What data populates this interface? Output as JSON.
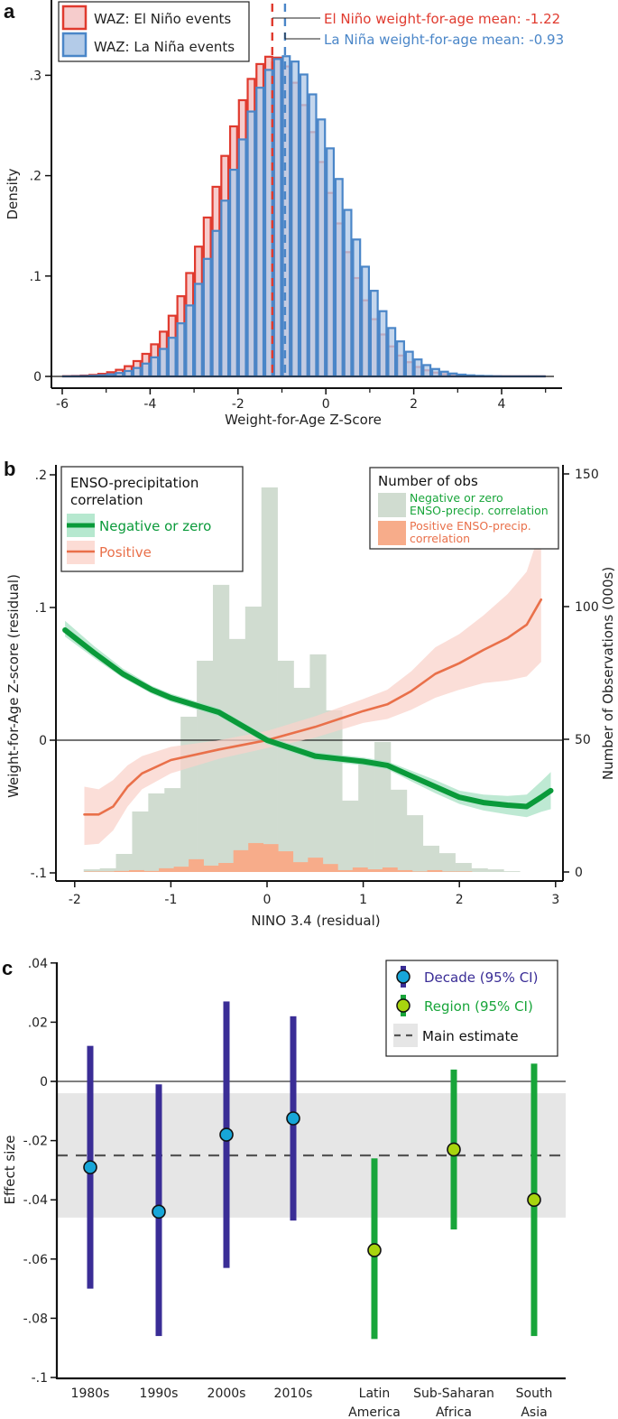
{
  "chart_data": [
    {
      "panel": "a",
      "type": "bar",
      "subtype": "overlaid-histogram",
      "title": "",
      "xlabel": "Weight-for-Age Z-Score",
      "ylabel": "Density",
      "xlim": [
        -6,
        5
      ],
      "ylim": [
        0,
        0.35
      ],
      "xticks": [
        "-6",
        "-4",
        "-2",
        "0",
        "2",
        "4"
      ],
      "xtick_values": [
        -6,
        -4,
        -2,
        0,
        2,
        4
      ],
      "yticks": [
        "0",
        ".1",
        ".2",
        ".3"
      ],
      "ytick_values": [
        0,
        0.1,
        0.2,
        0.3
      ],
      "bin_start": -6,
      "bin_width": 0.2,
      "series": [
        {
          "name": "WAZ: El Niño events",
          "color": "#e03a2e",
          "fill": "#f6cccc",
          "values": [
            0.0003,
            0.0005,
            0.0009,
            0.0015,
            0.0026,
            0.0042,
            0.0066,
            0.0102,
            0.0153,
            0.0225,
            0.032,
            0.0446,
            0.0605,
            0.0799,
            0.103,
            0.1293,
            0.1583,
            0.1889,
            0.2197,
            0.2491,
            0.2752,
            0.2964,
            0.3112,
            0.3185,
            0.3176,
            0.3088,
            0.2926,
            0.2703,
            0.2434,
            0.2136,
            0.1828,
            0.1524,
            0.1238,
            0.098,
            0.0758,
            0.057,
            0.0418,
            0.0299,
            0.0208,
            0.0142,
            0.0094,
            0.0061,
            0.0038,
            0.0023,
            0.0014,
            0.0008,
            0.0005,
            0.0003,
            0.0002,
            0.0001,
            0.0001,
            0.0001,
            0.0001,
            0.0001,
            0.0001
          ]
        },
        {
          "name": "WAZ: La Niña events",
          "color": "#4a86c8",
          "fill": "#b3cbe8",
          "values": [
            0.0001,
            0.0002,
            0.0004,
            0.0007,
            0.0012,
            0.0021,
            0.0034,
            0.0054,
            0.0084,
            0.0128,
            0.019,
            0.0274,
            0.0385,
            0.0529,
            0.0707,
            0.0922,
            0.1171,
            0.145,
            0.1751,
            0.2059,
            0.2361,
            0.2639,
            0.2876,
            0.3054,
            0.3162,
            0.319,
            0.3137,
            0.3008,
            0.281,
            0.256,
            0.2272,
            0.1967,
            0.1659,
            0.1364,
            0.1093,
            0.0853,
            0.065,
            0.0482,
            0.0349,
            0.0246,
            0.0169,
            0.0113,
            0.0074,
            0.0047,
            0.0029,
            0.0018,
            0.0011,
            0.0006,
            0.0004,
            0.0002,
            0.0001,
            0.0001,
            0.0001,
            0.0001,
            0.0001
          ]
        }
      ],
      "annotations": [
        {
          "text": "El Niño weight-for-age mean: -1.22",
          "x": -1.22,
          "color": "#e03a2e"
        },
        {
          "text": "La Niña weight-for-age mean: -0.93",
          "x": -0.93,
          "color": "#4a86c8"
        }
      ],
      "legend_position": "top-left"
    },
    {
      "panel": "b",
      "type": "line",
      "subtype": "line-with-ci-and-histogram",
      "xlabel": "NINO 3.4 (residual)",
      "ylabel": "Weight-for-Age Z-score (residual)",
      "ylabel_right": "Number of Observations (000s)",
      "xlim": [
        -2.1,
        3.05
      ],
      "ylim": [
        -0.1,
        0.2
      ],
      "ylim_right": [
        0,
        150
      ],
      "xticks": [
        "-2",
        "-1",
        "0",
        "1",
        "2",
        "3"
      ],
      "xtick_values": [
        -2,
        -1,
        0,
        1,
        2,
        3
      ],
      "yticks": [
        "-.1",
        "0",
        ".1",
        ".2"
      ],
      "ytick_values": [
        -0.1,
        0,
        0.1,
        0.2
      ],
      "yticks_right": [
        "0",
        "50",
        "100",
        "150"
      ],
      "ytick_values_right": [
        0,
        50,
        100,
        150
      ],
      "series": [
        {
          "name": "Negative or zero",
          "color": "#0a9a3a",
          "band_color": "#a8e2c4",
          "x": [
            -2.1,
            -1.8,
            -1.5,
            -1.2,
            -1.0,
            -0.5,
            0.0,
            0.5,
            1.0,
            1.25,
            1.5,
            1.75,
            2.0,
            2.25,
            2.5,
            2.7,
            2.85,
            2.95
          ],
          "y": [
            0.083,
            0.066,
            0.05,
            0.038,
            0.032,
            0.021,
            0.0,
            -0.012,
            -0.016,
            -0.019,
            -0.027,
            -0.035,
            -0.043,
            -0.047,
            -0.049,
            -0.05,
            -0.043,
            -0.038
          ],
          "lower": [
            0.078,
            0.062,
            0.047,
            0.035,
            0.029,
            0.018,
            -0.003,
            -0.015,
            -0.019,
            -0.022,
            -0.031,
            -0.04,
            -0.048,
            -0.053,
            -0.056,
            -0.058,
            -0.054,
            -0.052
          ],
          "upper": [
            0.09,
            0.071,
            0.054,
            0.041,
            0.035,
            0.024,
            0.003,
            -0.009,
            -0.013,
            -0.016,
            -0.023,
            -0.03,
            -0.038,
            -0.041,
            -0.042,
            -0.041,
            -0.031,
            -0.024
          ]
        },
        {
          "name": "Positive",
          "color": "#e9704a",
          "band_color": "#f9d3cb",
          "x": [
            -1.9,
            -1.75,
            -1.6,
            -1.45,
            -1.3,
            -1.0,
            -0.5,
            0.0,
            0.5,
            1.0,
            1.25,
            1.5,
            1.75,
            2.0,
            2.25,
            2.5,
            2.7,
            2.85
          ],
          "y": [
            -0.056,
            -0.056,
            -0.05,
            -0.035,
            -0.025,
            -0.015,
            -0.007,
            0.0,
            0.01,
            0.022,
            0.027,
            0.037,
            0.05,
            0.058,
            0.068,
            0.077,
            0.087,
            0.106
          ],
          "lower": [
            -0.079,
            -0.078,
            -0.068,
            -0.05,
            -0.037,
            -0.025,
            -0.014,
            -0.006,
            0.002,
            0.013,
            0.016,
            0.023,
            0.032,
            0.038,
            0.043,
            0.045,
            0.048,
            0.059
          ],
          "upper": [
            -0.035,
            -0.037,
            -0.03,
            -0.019,
            -0.012,
            -0.005,
            0.0,
            0.007,
            0.018,
            0.031,
            0.038,
            0.052,
            0.07,
            0.08,
            0.094,
            0.11,
            0.127,
            0.16
          ]
        }
      ],
      "histograms": [
        {
          "name": "Negative or zero ENSO-precip. correlation",
          "color": "#d0dcd0",
          "bin_start": -1.907,
          "bin_width": 0.168,
          "values": [
            1.0,
            1.4,
            6.8,
            22.8,
            29.6,
            31.6,
            58.5,
            79.6,
            108.2,
            87.8,
            100.0,
            144.9,
            79.6,
            69.4,
            82.0,
            60.9,
            26.9,
            41.8,
            49.0,
            31.0,
            21.4,
            9.9,
            7.1,
            3.4,
            1.4,
            1.0,
            0.3
          ]
        },
        {
          "name": "Positive ENSO-precip. correlation",
          "color": "#f7ac8a",
          "bin_start": -1.9,
          "bin_width": 0.155,
          "values": [
            0.2,
            0.2,
            0.4,
            0.7,
            0.4,
            1.4,
            2.0,
            4.8,
            2.4,
            3.4,
            8.2,
            10.9,
            10.5,
            7.8,
            3.7,
            5.4,
            3.0,
            0.7,
            1.7,
            1.0,
            1.7,
            0.7,
            0.2,
            0.7,
            0.2,
            0.2
          ]
        }
      ],
      "legend_left": {
        "title_line1": "ENSO-precipitation",
        "title_line2": "correlation",
        "items": [
          "Negative or zero",
          "Positive"
        ],
        "position": "top-left"
      },
      "legend_right": {
        "title": "Number of obs",
        "items": [
          [
            "Negative or zero",
            "ENSO-precip. correlation"
          ],
          [
            "Positive ENSO-precip.",
            "correlation"
          ]
        ],
        "position": "top-right"
      }
    },
    {
      "panel": "c",
      "type": "scatter",
      "subtype": "point-estimate-with-ci",
      "xlabel": "",
      "ylabel": "Effect size",
      "ylim": [
        -0.1,
        0.04
      ],
      "yticks": [
        ".04",
        ".02",
        "0",
        "-.02",
        "-.04",
        "-.06",
        "-.08",
        "-.1"
      ],
      "ytick_values": [
        0.04,
        0.02,
        0,
        -0.02,
        -0.04,
        -0.06,
        -0.08,
        -0.1
      ],
      "categories": [
        [
          "1980s"
        ],
        [
          "1990s"
        ],
        [
          "2000s"
        ],
        [
          "2010s"
        ],
        [
          "Latin",
          "America"
        ],
        [
          "Sub-Saharan",
          "Africa"
        ],
        [
          "South",
          "Asia"
        ]
      ],
      "series": [
        {
          "name": "Decade (95% CI)",
          "line_color": "#3a2d96",
          "marker_color": "#17a6d8",
          "category_indices": [
            0,
            1,
            2,
            3
          ],
          "values": [
            -0.029,
            -0.044,
            -0.018,
            -0.0125
          ],
          "ci_low": [
            -0.07,
            -0.086,
            -0.063,
            -0.047
          ],
          "ci_high": [
            0.012,
            -0.001,
            0.027,
            0.022
          ]
        },
        {
          "name": "Region (95% CI)",
          "line_color": "#18a53a",
          "marker_color": "#a8d40e",
          "category_indices": [
            4,
            5,
            6
          ],
          "values": [
            -0.057,
            -0.023,
            -0.04
          ],
          "ci_low": [
            -0.087,
            -0.05,
            -0.086
          ],
          "ci_high": [
            -0.026,
            0.004,
            0.006
          ]
        }
      ],
      "main_estimate": {
        "name": "Main estimate",
        "value": -0.025,
        "ci_low": -0.046,
        "ci_high": -0.004
      },
      "legend_position": "top-right"
    }
  ]
}
